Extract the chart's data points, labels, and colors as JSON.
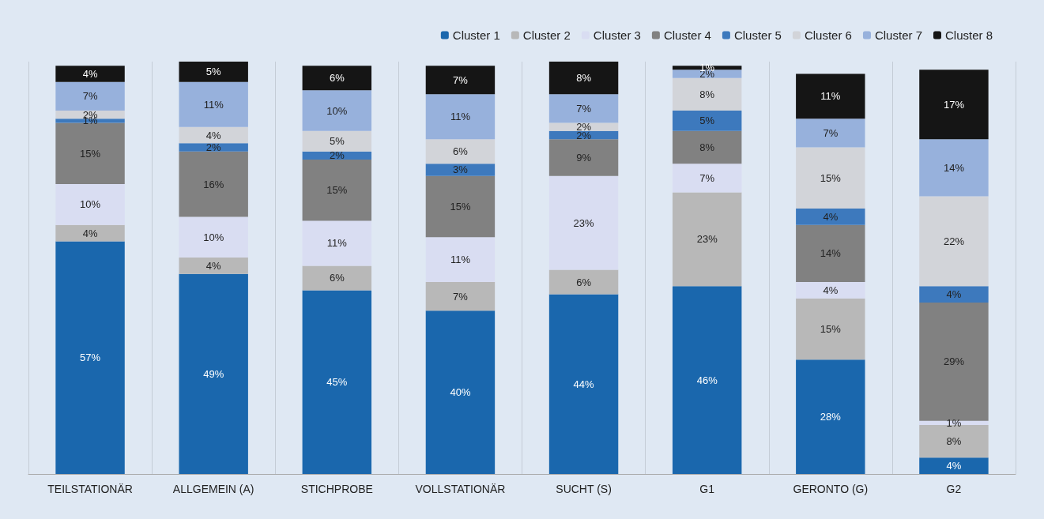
{
  "chart_data": {
    "type": "bar",
    "stacked": true,
    "legend": "top right",
    "grid": "x",
    "categories": [
      "TEILSTATIONÄR",
      "ALLGEMEIN (A)",
      "STICHPROBE",
      "VOLLSTATIONÄR",
      "SUCHT (S)",
      "G1",
      "GERONTO (G)",
      "G2"
    ],
    "series": [
      {
        "name": "Cluster 1",
        "color": "#1a67ad",
        "values": [
          57,
          49,
          45,
          40,
          44,
          46,
          28,
          4
        ],
        "value_labels": [
          "57%",
          "49%",
          "45%",
          "40%",
          "44%",
          "46%",
          "28%",
          "4%"
        ]
      },
      {
        "name": "Cluster 2",
        "color": "#b8b8b8",
        "values": [
          4,
          4,
          6,
          7,
          6,
          23,
          15,
          8
        ],
        "value_labels": [
          "4%",
          "4%",
          "6%",
          "7%",
          "6%",
          "23%",
          "15%",
          "8%"
        ]
      },
      {
        "name": "Cluster 3",
        "color": "#d9ddf2",
        "values": [
          10,
          10,
          11,
          11,
          23,
          7,
          4,
          1
        ],
        "value_labels": [
          "10%",
          "10%",
          "11%",
          "11%",
          "23%",
          "7%",
          "4%",
          "1%"
        ]
      },
      {
        "name": "Cluster 4",
        "color": "#818181",
        "values": [
          15,
          16,
          15,
          15,
          9,
          8,
          14,
          29
        ],
        "value_labels": [
          "15%",
          "16%",
          "15%",
          "15%",
          "9%",
          "8%",
          "14%",
          "29%"
        ]
      },
      {
        "name": "Cluster 5",
        "color": "#3d79bd",
        "values": [
          1,
          2,
          2,
          3,
          2,
          5,
          4,
          4
        ],
        "value_labels": [
          "1%",
          "2%",
          "2%",
          "3%",
          "2%",
          "5%",
          "4%",
          "4%"
        ]
      },
      {
        "name": "Cluster 6",
        "color": "#d2d4d9",
        "values": [
          2,
          4,
          5,
          6,
          2,
          8,
          15,
          22
        ],
        "value_labels": [
          "2%",
          "4%",
          "5%",
          "6%",
          "2%",
          "8%",
          "15%",
          "22%"
        ]
      },
      {
        "name": "Cluster 7",
        "color": "#97b1dc",
        "values": [
          7,
          11,
          10,
          11,
          7,
          2,
          7,
          14
        ],
        "value_labels": [
          "7%",
          "11%",
          "10%",
          "11%",
          "7%",
          "2%",
          "7%",
          "14%"
        ]
      },
      {
        "name": "Cluster 8",
        "color": "#151515",
        "values": [
          4,
          5,
          6,
          7,
          8,
          1,
          11,
          17
        ],
        "value_labels": [
          "4%",
          "5%",
          "6%",
          "7%",
          "8%",
          "1%",
          "11%",
          "17%"
        ]
      }
    ]
  }
}
